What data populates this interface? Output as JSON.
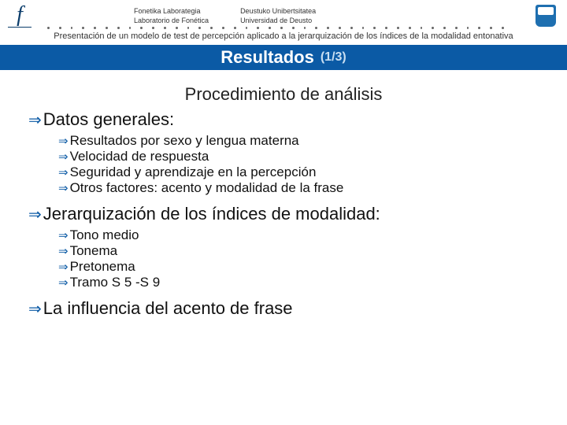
{
  "colors": {
    "brand_blue": "#0b5aa5",
    "logo_blue": "#0b3d6b",
    "shield_blue": "#1e6fb0",
    "background": "#ffffff",
    "text": "#111111"
  },
  "header": {
    "left_logo_glyph": "f",
    "lab_eu": "Fonetika Laborategia",
    "lab_es": "Laboratorio de Fonética",
    "uni_eu": "Deustuko Unibertsitatea",
    "uni_es": "Universidad de Deusto"
  },
  "subtitle": "Presentación de un modelo de test de percepción aplicado a la jerarquización de los índices de la modalidad entonativa",
  "title": {
    "main": "Resultados",
    "counter": "(1/3)"
  },
  "section_heading": "Procedimiento de análisis",
  "bullets": {
    "arrow": "⇒",
    "l1a": "Datos generales:",
    "l1a_items": [
      "Resultados por sexo y lengua materna",
      "Velocidad de respuesta",
      "Seguridad y aprendizaje en la percepción",
      "Otros factores: acento y modalidad de la frase"
    ],
    "l1b": "Jerarquización de los índices de modalidad:",
    "l1b_items": [
      "Tono medio",
      "Tonema",
      "Pretonema",
      "Tramo S 5 -S 9"
    ],
    "l1c": "La influencia del acento de frase"
  }
}
